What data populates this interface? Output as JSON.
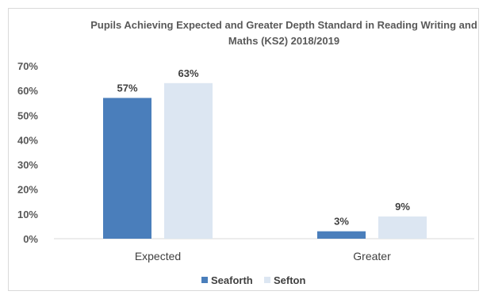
{
  "chart_data": {
    "type": "bar",
    "title": "Pupils Achieving Expected and Greater Depth Standard in Reading Writing and Maths (KS2) 2018/2019",
    "categories": [
      "Expected",
      "Greater"
    ],
    "series": [
      {
        "name": "Seaforth",
        "values": [
          57,
          3
        ],
        "labels": [
          "57%",
          "3%"
        ],
        "color": "#4a7ebb"
      },
      {
        "name": "Sefton",
        "values": [
          63,
          9
        ],
        "labels": [
          "63%",
          "9%"
        ],
        "color": "#dce6f2"
      }
    ],
    "ylim": [
      0,
      70
    ],
    "yticks": [
      "0%",
      "10%",
      "20%",
      "30%",
      "40%",
      "50%",
      "60%",
      "70%"
    ],
    "grid": false,
    "legend": "bottom"
  }
}
